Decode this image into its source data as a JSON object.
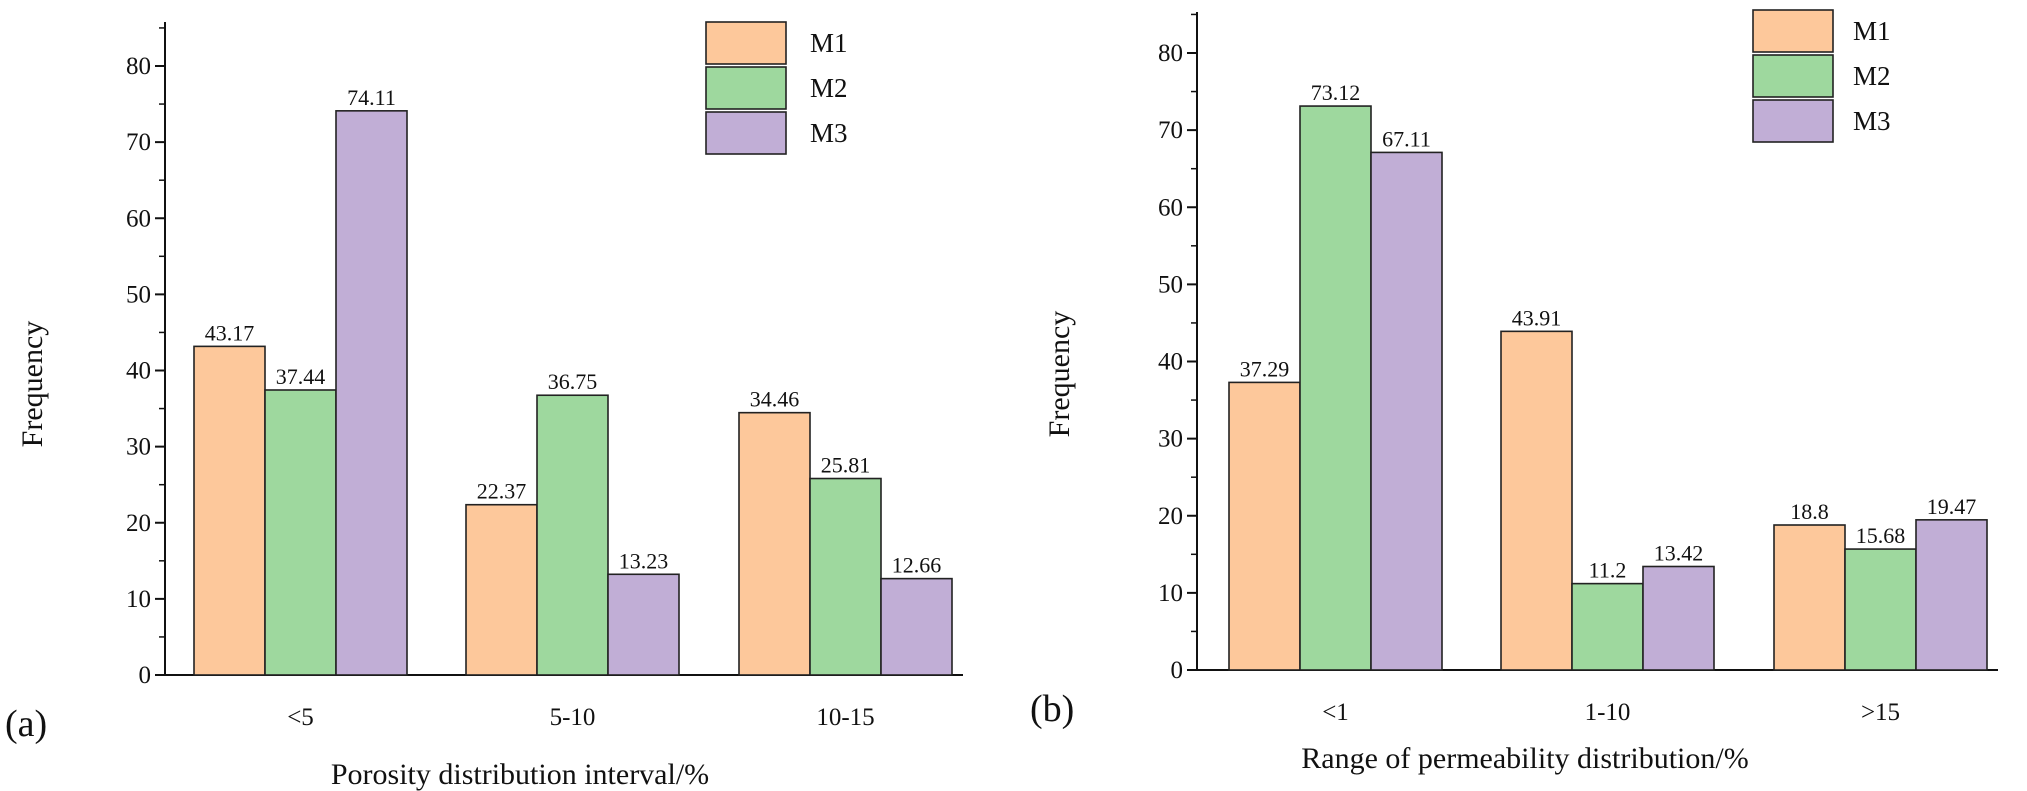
{
  "colors": {
    "M1": "#fdc89b",
    "M2": "#9ed89e",
    "M3": "#c1aed6",
    "axis": "#111111"
  },
  "chart_data": [
    {
      "type": "bar",
      "panel_label": "(a)",
      "categories": [
        "<5",
        "5-10",
        "10-15"
      ],
      "series": [
        {
          "name": "M1",
          "values": [
            43.17,
            22.37,
            34.46
          ],
          "labels": [
            "43.17",
            "22.37",
            "34.46"
          ]
        },
        {
          "name": "M2",
          "values": [
            37.44,
            36.75,
            25.81
          ],
          "labels": [
            "37.44",
            "36.75",
            "25.81"
          ]
        },
        {
          "name": "M3",
          "values": [
            74.11,
            13.23,
            12.66
          ],
          "labels": [
            "74.11",
            "13.23",
            "12.66"
          ]
        }
      ],
      "xlabel": "Porosity distribution interval/%",
      "ylabel": "Frequency",
      "ylim": [
        0,
        86
      ],
      "yticks": [
        "0",
        "10",
        "20",
        "30",
        "40",
        "50",
        "60",
        "70",
        "80"
      ],
      "ytick_values": [
        0,
        10,
        20,
        30,
        40,
        50,
        60,
        70,
        80
      ],
      "legend": [
        "M1",
        "M2",
        "M3"
      ],
      "legend_position": "top-right",
      "grid": false
    },
    {
      "type": "bar",
      "panel_label": "(b)",
      "categories": [
        "<1",
        "1-10",
        ">15"
      ],
      "series": [
        {
          "name": "M1",
          "values": [
            37.29,
            43.91,
            18.8
          ],
          "labels": [
            "37.29",
            "43.91",
            "18.8"
          ]
        },
        {
          "name": "M2",
          "values": [
            73.12,
            11.2,
            15.68
          ],
          "labels": [
            "73.12",
            "11.2",
            "15.68"
          ]
        },
        {
          "name": "M3",
          "values": [
            67.11,
            13.42,
            19.47
          ],
          "labels": [
            "67.11",
            "13.42",
            "19.47"
          ]
        }
      ],
      "xlabel": "Range of permeability distribution/%",
      "ylabel": "Frequency",
      "ylim": [
        0,
        86
      ],
      "yticks": [
        "0",
        "10",
        "20",
        "30",
        "40",
        "50",
        "60",
        "70",
        "80"
      ],
      "ytick_values": [
        0,
        10,
        20,
        30,
        40,
        50,
        60,
        70,
        80
      ],
      "legend": [
        "M1",
        "M2",
        "M3"
      ],
      "legend_position": "top-right",
      "grid": false
    }
  ]
}
